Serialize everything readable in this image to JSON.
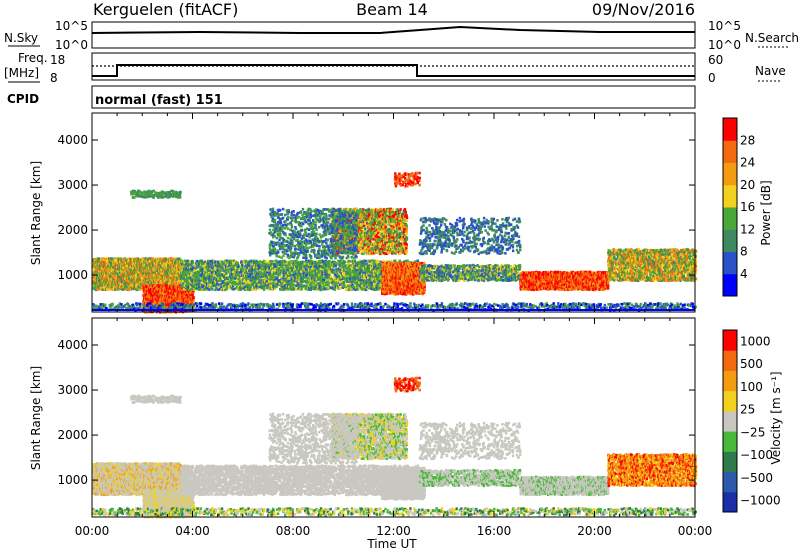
{
  "header": {
    "station": "Kerguelen (fitACF)",
    "beam": "Beam 14",
    "date": "09/Nov/2016"
  },
  "params": {
    "nsky_label": "N.Sky",
    "nsky_ticks": [
      "10^5",
      "10^0"
    ],
    "nsearch_label": "N.Search",
    "nsearch_ticks": [
      "10^5",
      "10^0"
    ],
    "freq_label_1": "Freq.",
    "freq_label_2": "[MHz]",
    "freq_ticks": [
      "18",
      "8"
    ],
    "nave_label": "Nave",
    "nave_ticks": [
      "60",
      "0"
    ],
    "cpid_label": "CPID",
    "cpid_text": "normal (fast) 151"
  },
  "colors": {
    "power": [
      "#0000ff",
      "#2a52c8",
      "#3e8a5e",
      "#4aa83a",
      "#f2d21e",
      "#f39c12",
      "#f36a10",
      "#ff0000"
    ],
    "velocity": [
      "#1a2ea8",
      "#2c5aa8",
      "#2f7a4a",
      "#4ab83a",
      "#c8c8c0",
      "#f2d21e",
      "#f39c12",
      "#f36a10",
      "#ff0000"
    ],
    "ground_scatter": "#c8c8c0"
  },
  "chart_data": [
    {
      "type": "heatmap",
      "name": "power",
      "ylabel": "Slant Range [km]",
      "ylim": [
        180,
        4600
      ],
      "yticks": [
        "1000",
        "2000",
        "3000",
        "4000"
      ],
      "xlim": [
        0,
        24
      ],
      "xticks": [
        "00:00",
        "04:00",
        "08:00",
        "12:00",
        "16:00",
        "20:00",
        "00:00"
      ],
      "colorbar_label": "Power [dB]",
      "colorbar_ticks": [
        "4",
        "8",
        "12",
        "16",
        "20",
        "24",
        "28"
      ]
    },
    {
      "type": "heatmap",
      "name": "velocity",
      "ylabel": "Slant Range [km]",
      "ylim": [
        180,
        4600
      ],
      "yticks": [
        "1000",
        "2000",
        "3000",
        "4000"
      ],
      "xlabel": "Time UT",
      "xlim": [
        0,
        24
      ],
      "xticks": [
        "00:00",
        "04:00",
        "08:00",
        "12:00",
        "16:00",
        "20:00",
        "00:00"
      ],
      "colorbar_label": "Velocity [m s⁻¹]",
      "colorbar_ticks": [
        "1000",
        "500",
        "100",
        "25",
        "−25",
        "−100",
        "−500",
        "−1000"
      ]
    }
  ]
}
